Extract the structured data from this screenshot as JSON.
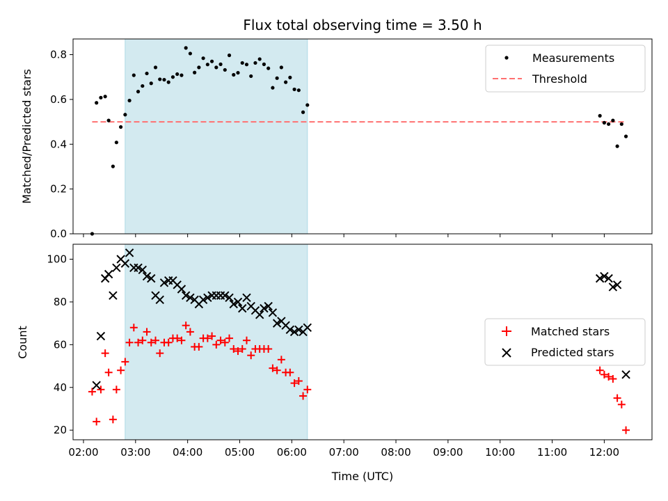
{
  "chart_data": [
    {
      "type": "scatter",
      "title": "Flux total observing time = 3.50 h",
      "xlabel": "",
      "ylabel": "Matched/Predicted stars",
      "ylim": [
        0,
        0.87
      ],
      "yticks": [
        "0.0",
        "0.2",
        "0.4",
        "0.6",
        "0.8"
      ],
      "shaded_interval": [
        "02:48",
        "06:18"
      ],
      "shade_color": "#d3eaf0",
      "legend_position": "upper right",
      "series": [
        {
          "name": "Measurements",
          "marker": "dot",
          "color": "#000000",
          "points": [
            [
              "02:10",
              0.0
            ],
            [
              "02:15",
              0.585
            ],
            [
              "02:20",
              0.608
            ],
            [
              "02:25",
              0.613
            ],
            [
              "02:29",
              0.506
            ],
            [
              "02:34",
              0.301
            ],
            [
              "02:38",
              0.408
            ],
            [
              "02:43",
              0.477
            ],
            [
              "02:48",
              0.532
            ],
            [
              "02:53",
              0.595
            ],
            [
              "02:58",
              0.708
            ],
            [
              "03:03",
              0.635
            ],
            [
              "03:08",
              0.66
            ],
            [
              "03:13",
              0.716
            ],
            [
              "03:18",
              0.672
            ],
            [
              "03:23",
              0.743
            ],
            [
              "03:28",
              0.69
            ],
            [
              "03:33",
              0.688
            ],
            [
              "03:38",
              0.677
            ],
            [
              "03:43",
              0.7
            ],
            [
              "03:48",
              0.713
            ],
            [
              "03:53",
              0.708
            ],
            [
              "03:58",
              0.83
            ],
            [
              "04:03",
              0.805
            ],
            [
              "04:08",
              0.72
            ],
            [
              "04:13",
              0.743
            ],
            [
              "04:18",
              0.784
            ],
            [
              "04:23",
              0.756
            ],
            [
              "04:28",
              0.77
            ],
            [
              "04:33",
              0.743
            ],
            [
              "04:38",
              0.757
            ],
            [
              "04:43",
              0.732
            ],
            [
              "04:48",
              0.797
            ],
            [
              "04:53",
              0.71
            ],
            [
              "04:58",
              0.719
            ],
            [
              "05:03",
              0.763
            ],
            [
              "05:08",
              0.756
            ],
            [
              "05:13",
              0.704
            ],
            [
              "05:18",
              0.763
            ],
            [
              "05:23",
              0.78
            ],
            [
              "05:28",
              0.757
            ],
            [
              "05:33",
              0.739
            ],
            [
              "05:38",
              0.652
            ],
            [
              "05:43",
              0.695
            ],
            [
              "05:48",
              0.743
            ],
            [
              "05:53",
              0.677
            ],
            [
              "05:58",
              0.698
            ],
            [
              "06:03",
              0.645
            ],
            [
              "06:08",
              0.641
            ],
            [
              "06:13",
              0.543
            ],
            [
              "06:18",
              0.575
            ],
            [
              "11:55",
              0.527
            ],
            [
              "12:00",
              0.496
            ],
            [
              "12:05",
              0.49
            ],
            [
              "12:10",
              0.506
            ],
            [
              "12:15",
              0.391
            ],
            [
              "12:20",
              0.49
            ],
            [
              "12:25",
              0.435
            ]
          ]
        },
        {
          "name": "Threshold",
          "line_style": "dashed",
          "color": "#ff7070",
          "points": [
            [
              "02:10",
              0.5
            ],
            [
              "12:25",
              0.5
            ]
          ]
        }
      ]
    },
    {
      "type": "scatter",
      "title": "",
      "xlabel": "Time (UTC)",
      "ylabel": "Count",
      "ylim": [
        15.5,
        107
      ],
      "yticks": [
        "20",
        "40",
        "60",
        "80",
        "100"
      ],
      "xlim": [
        "01:48",
        "12:55"
      ],
      "xticks": [
        "02:00",
        "03:00",
        "04:00",
        "05:00",
        "06:00",
        "07:00",
        "08:00",
        "09:00",
        "10:00",
        "11:00",
        "12:00"
      ],
      "shaded_interval": [
        "02:48",
        "06:18"
      ],
      "shade_color": "#d3eaf0",
      "legend_position": "center right",
      "series": [
        {
          "name": "Matched stars",
          "marker": "plus",
          "color": "#ff0000",
          "points": [
            [
              "02:10",
              38
            ],
            [
              "02:15",
              24
            ],
            [
              "02:20",
              39
            ],
            [
              "02:25",
              56
            ],
            [
              "02:29",
              47
            ],
            [
              "02:34",
              25
            ],
            [
              "02:38",
              39
            ],
            [
              "02:43",
              48
            ],
            [
              "02:48",
              52
            ],
            [
              "02:53",
              61
            ],
            [
              "02:58",
              68
            ],
            [
              "03:03",
              61
            ],
            [
              "03:08",
              62
            ],
            [
              "03:13",
              66
            ],
            [
              "03:18",
              61
            ],
            [
              "03:23",
              62
            ],
            [
              "03:28",
              56
            ],
            [
              "03:33",
              61
            ],
            [
              "03:38",
              61
            ],
            [
              "03:43",
              63
            ],
            [
              "03:48",
              63
            ],
            [
              "03:53",
              62
            ],
            [
              "03:58",
              69
            ],
            [
              "04:03",
              66
            ],
            [
              "04:08",
              59
            ],
            [
              "04:13",
              59
            ],
            [
              "04:18",
              63
            ],
            [
              "04:23",
              63
            ],
            [
              "04:28",
              64
            ],
            [
              "04:33",
              60
            ],
            [
              "04:38",
              62
            ],
            [
              "04:43",
              61
            ],
            [
              "04:48",
              63
            ],
            [
              "04:53",
              58
            ],
            [
              "04:58",
              57
            ],
            [
              "05:03",
              58
            ],
            [
              "05:08",
              62
            ],
            [
              "05:13",
              55
            ],
            [
              "05:18",
              58
            ],
            [
              "05:23",
              58
            ],
            [
              "05:28",
              58
            ],
            [
              "05:33",
              58
            ],
            [
              "05:38",
              49
            ],
            [
              "05:43",
              48
            ],
            [
              "05:48",
              53
            ],
            [
              "05:53",
              47
            ],
            [
              "05:58",
              47
            ],
            [
              "06:03",
              42
            ],
            [
              "06:08",
              43
            ],
            [
              "06:13",
              36
            ],
            [
              "06:18",
              39
            ],
            [
              "11:55",
              48
            ],
            [
              "12:00",
              46
            ],
            [
              "12:05",
              45
            ],
            [
              "12:10",
              44
            ],
            [
              "12:15",
              35
            ],
            [
              "12:20",
              32
            ],
            [
              "12:25",
              20
            ]
          ]
        },
        {
          "name": "Predicted stars",
          "marker": "x",
          "color": "#000000",
          "points": [
            [
              "02:15",
              41
            ],
            [
              "02:20",
              64
            ],
            [
              "02:25",
              91
            ],
            [
              "02:29",
              93
            ],
            [
              "02:34",
              83
            ],
            [
              "02:38",
              96
            ],
            [
              "02:43",
              100
            ],
            [
              "02:48",
              98
            ],
            [
              "02:53",
              103
            ],
            [
              "02:58",
              96
            ],
            [
              "03:03",
              96
            ],
            [
              "03:08",
              95
            ],
            [
              "03:13",
              92
            ],
            [
              "03:18",
              91
            ],
            [
              "03:23",
              83
            ],
            [
              "03:28",
              81
            ],
            [
              "03:33",
              89
            ],
            [
              "03:38",
              90
            ],
            [
              "03:43",
              90
            ],
            [
              "03:48",
              88
            ],
            [
              "03:53",
              86
            ],
            [
              "03:58",
              83
            ],
            [
              "04:03",
              82
            ],
            [
              "04:08",
              81
            ],
            [
              "04:13",
              79
            ],
            [
              "04:18",
              81
            ],
            [
              "04:23",
              82
            ],
            [
              "04:28",
              83
            ],
            [
              "04:33",
              83
            ],
            [
              "04:38",
              83
            ],
            [
              "04:43",
              83
            ],
            [
              "04:48",
              82
            ],
            [
              "04:53",
              79
            ],
            [
              "04:58",
              80
            ],
            [
              "05:03",
              77
            ],
            [
              "05:08",
              82
            ],
            [
              "05:13",
              78
            ],
            [
              "05:18",
              76
            ],
            [
              "05:23",
              74
            ],
            [
              "05:28",
              77
            ],
            [
              "05:33",
              78
            ],
            [
              "05:38",
              75
            ],
            [
              "05:43",
              70
            ],
            [
              "05:48",
              71
            ],
            [
              "05:53",
              69
            ],
            [
              "05:58",
              67
            ],
            [
              "06:03",
              66
            ],
            [
              "06:08",
              67
            ],
            [
              "06:13",
              66
            ],
            [
              "06:18",
              68
            ],
            [
              "11:55",
              91
            ],
            [
              "12:00",
              92
            ],
            [
              "12:05",
              91
            ],
            [
              "12:10",
              87
            ],
            [
              "12:15",
              88
            ],
            [
              "12:25",
              46
            ]
          ]
        }
      ]
    }
  ]
}
